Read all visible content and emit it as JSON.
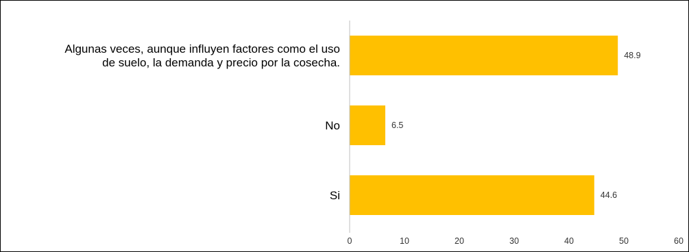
{
  "chart_data": {
    "type": "bar",
    "orientation": "horizontal",
    "title": "",
    "xlabel": "",
    "ylabel": "",
    "categories": [
      [
        "Algunas veces, aunque influyen factores como el uso",
        "de suelo, la demanda y precio por la cosecha."
      ],
      [
        "No"
      ],
      [
        "Si"
      ]
    ],
    "values": [
      48.9,
      6.5,
      44.6
    ],
    "value_labels": [
      "48.9",
      "6.5",
      "44.6"
    ],
    "xlim": [
      0,
      60
    ],
    "x_ticks": [
      0,
      10,
      20,
      30,
      40,
      50,
      60
    ],
    "grid": false,
    "legend": "none",
    "bar_color": "#FFC000",
    "axis_color": "#BFBFBF"
  }
}
